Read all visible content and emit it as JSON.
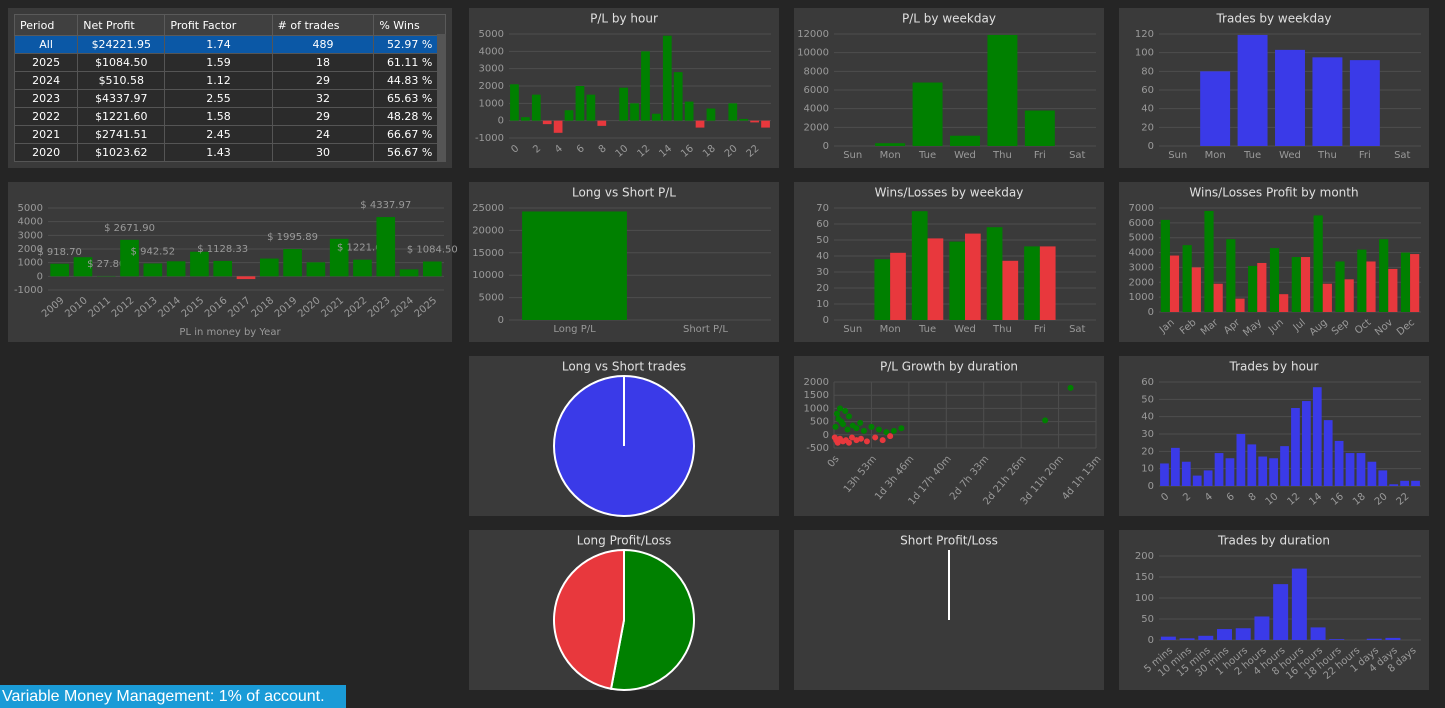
{
  "table": {
    "columns": [
      "Period",
      "Net Profit",
      "Profit Factor",
      "# of trades",
      "% Wins"
    ],
    "rows": [
      [
        "All",
        "$24221.95",
        "1.74",
        "489",
        "52.97 %"
      ],
      [
        "2025",
        "$1084.50",
        "1.59",
        "18",
        "61.11 %"
      ],
      [
        "2024",
        "$510.58",
        "1.12",
        "29",
        "44.83 %"
      ],
      [
        "2023",
        "$4337.97",
        "2.55",
        "32",
        "65.63 %"
      ],
      [
        "2022",
        "$1221.60",
        "1.58",
        "29",
        "48.28 %"
      ],
      [
        "2021",
        "$2741.51",
        "2.45",
        "24",
        "66.67 %"
      ],
      [
        "2020",
        "$1023.62",
        "1.43",
        "30",
        "56.67 %"
      ]
    ]
  },
  "footer": "Variable Money Management: 1% of account.",
  "chart_data": [
    {
      "type": "bar",
      "title": "P/L by hour",
      "categories": [
        "0",
        null,
        "2",
        null,
        "4",
        null,
        "6",
        null,
        "8",
        null,
        "10",
        null,
        "12",
        null,
        "14",
        null,
        "16",
        null,
        "18",
        null,
        "20",
        null,
        "22",
        null
      ],
      "values": [
        2100,
        200,
        1500,
        -200,
        -700,
        600,
        2000,
        1500,
        -300,
        0,
        1900,
        1000,
        4000,
        400,
        4900,
        2800,
        1100,
        -400,
        700,
        0,
        1000,
        100,
        -100,
        -400
      ],
      "color": "#008000",
      "negative_color": "#e8383d",
      "ylim": [
        -1000,
        5000
      ],
      "yticks": [
        -1000,
        0,
        1000,
        2000,
        3000,
        4000,
        5000
      ],
      "rotate_labels": true
    },
    {
      "type": "bar",
      "title": "P/L by weekday",
      "categories": [
        "Sun",
        "Mon",
        "Tue",
        "Wed",
        "Thu",
        "Fri",
        "Sat"
      ],
      "values": [
        0,
        300,
        6800,
        1100,
        11900,
        3800,
        0
      ],
      "color": "#008000",
      "ylim": [
        0,
        12000
      ],
      "yticks": [
        0,
        2000,
        4000,
        6000,
        8000,
        10000,
        12000
      ]
    },
    {
      "type": "bar",
      "title": "Trades by weekday",
      "categories": [
        "Sun",
        "Mon",
        "Tue",
        "Wed",
        "Thu",
        "Fri",
        "Sat"
      ],
      "values": [
        0,
        80,
        119,
        103,
        95,
        92,
        0
      ],
      "color": "#3a3ae8",
      "ylim": [
        0,
        120
      ],
      "yticks": [
        0,
        20,
        40,
        60,
        80,
        100,
        120
      ]
    },
    {
      "type": "bar",
      "x_label": "PL in money by Year",
      "categories": [
        "2009",
        "2010",
        "2011",
        "2012",
        "2013",
        "2014",
        "2015",
        "2016",
        "2017",
        "2018",
        "2019",
        "2020",
        "2021",
        "2022",
        "2023",
        "2024",
        "2025"
      ],
      "values": [
        918.7,
        1400,
        27.8,
        2671.9,
        942.52,
        1100,
        1800,
        1128.33,
        -200,
        1300,
        1995.89,
        1023.62,
        2741.51,
        1221.6,
        4337.97,
        510.58,
        1084.5
      ],
      "value_labels": [
        "$ 918.70",
        null,
        "$ 27.80",
        "$ 2671.90",
        "$ 942.52",
        null,
        null,
        "$ 1128.33",
        null,
        null,
        "$ 1995.89",
        null,
        null,
        "$ 1221.60",
        "$ 4337.97",
        null,
        "$ 1084.50"
      ],
      "color": "#008000",
      "negative_color": "#e8383d",
      "ylim": [
        -1000,
        5000
      ],
      "yticks": [
        -1000,
        0,
        1000,
        2000,
        3000,
        4000,
        5000
      ],
      "rotate_labels": true
    },
    {
      "type": "bar",
      "title": "Long vs Short P/L",
      "categories": [
        "Long P/L",
        "Short P/L"
      ],
      "values": [
        24221.95,
        0
      ],
      "color": "#008000",
      "ylim": [
        0,
        25000
      ],
      "yticks": [
        0,
        5000,
        10000,
        15000,
        20000,
        25000
      ]
    },
    {
      "type": "bar",
      "title": "Wins/Losses by weekday",
      "categories": [
        "Sun",
        "Mon",
        "Tue",
        "Wed",
        "Thu",
        "Fri",
        "Sat"
      ],
      "series": [
        {
          "color": "#008000",
          "values": [
            0,
            38,
            68,
            49,
            58,
            46,
            0
          ]
        },
        {
          "color": "#e8383d",
          "values": [
            0,
            42,
            51,
            54,
            37,
            46,
            0
          ]
        }
      ],
      "ylim": [
        0,
        70
      ],
      "yticks": [
        0,
        10,
        20,
        30,
        40,
        50,
        60,
        70
      ]
    },
    {
      "type": "bar",
      "title": "Wins/Losses Profit by month",
      "categories": [
        "Jan",
        "Feb",
        "Mar",
        "Apr",
        "May",
        "Jun",
        "Jul",
        "Aug",
        "Sep",
        "Oct",
        "Nov",
        "Dec"
      ],
      "series": [
        {
          "color": "#008000",
          "values": [
            6200,
            4500,
            6800,
            4900,
            3100,
            4300,
            3700,
            6500,
            3400,
            4200,
            4900,
            4000
          ]
        },
        {
          "color": "#e8383d",
          "values": [
            3800,
            3000,
            1900,
            900,
            3300,
            1200,
            3700,
            1900,
            2200,
            3400,
            2900,
            3900
          ]
        }
      ],
      "ylim": [
        0,
        7000
      ],
      "yticks": [
        0,
        1000,
        2000,
        3000,
        4000,
        5000,
        6000,
        7000
      ],
      "rotate_labels": true
    },
    {
      "type": "pie",
      "title": "Long vs Short trades",
      "values": [
        489,
        0
      ],
      "colors": [
        "#3a3ae8",
        "#e8383d"
      ]
    },
    {
      "type": "scatter",
      "title": "P/L Growth by duration",
      "series": [
        {
          "color": "#008000",
          "x": [
            2000,
            4000,
            6000,
            8000,
            10000,
            12000,
            15000,
            18000,
            20000,
            25000,
            30000,
            35000,
            40000,
            50000,
            60000,
            70000,
            80000,
            90000,
            282000,
            316000
          ],
          "values": [
            300,
            800,
            600,
            1000,
            500,
            400,
            900,
            200,
            700,
            350,
            250,
            450,
            150,
            300,
            200,
            100,
            150,
            250,
            545,
            1776
          ]
        },
        {
          "color": "#e8383d",
          "x": [
            1000,
            3000,
            5000,
            8000,
            12000,
            16000,
            20000,
            24000,
            30000,
            36000,
            44000,
            55000,
            65000,
            75000
          ],
          "values": [
            -100,
            -200,
            -300,
            -150,
            -250,
            -200,
            -300,
            -100,
            -200,
            -150,
            -250,
            -100,
            -200,
            -50
          ]
        }
      ],
      "xlim": [
        0,
        350000
      ],
      "xticks": [
        {
          "value": 0,
          "label": "0s"
        },
        {
          "value": 50000,
          "label": "13h 53m"
        },
        {
          "value": 100000,
          "label": "1d 3h 46m"
        },
        {
          "value": 150000,
          "label": "1d 17h 40m"
        },
        {
          "value": 200000,
          "label": "2d 7h 33m"
        },
        {
          "value": 250000,
          "label": "2d 21h 26m"
        },
        {
          "value": 300000,
          "label": "3d 11h 20m"
        },
        {
          "value": 350000,
          "label": "4d 1h 13m"
        }
      ],
      "ylim": [
        -500,
        2000
      ],
      "yticks": [
        -500,
        0,
        500,
        1000,
        1500,
        2000
      ]
    },
    {
      "type": "bar",
      "title": "Trades by hour",
      "categories": [
        "0",
        null,
        "2",
        null,
        "4",
        null,
        "6",
        null,
        "8",
        null,
        "10",
        null,
        "12",
        null,
        "14",
        null,
        "16",
        null,
        "18",
        null,
        "20",
        null,
        "22",
        null
      ],
      "values": [
        13,
        22,
        14,
        6,
        9,
        19,
        16,
        30,
        24,
        17,
        16,
        23,
        45,
        49,
        57,
        38,
        26,
        19,
        19,
        14,
        9,
        1,
        3,
        3
      ],
      "color": "#3a3ae8",
      "ylim": [
        0,
        60
      ],
      "yticks": [
        0,
        10,
        20,
        30,
        40,
        50,
        60
      ],
      "rotate_labels": true
    },
    {
      "type": "pie",
      "title": "Long Profit/Loss",
      "values": [
        259,
        230
      ],
      "colors": [
        "#008000",
        "#e8383d"
      ]
    },
    {
      "type": "pie",
      "title": "Short Profit/Loss",
      "values": [
        0,
        0
      ],
      "colors": [
        "#008000",
        "#e8383d"
      ]
    },
    {
      "type": "bar",
      "title": "Trades by duration",
      "categories": [
        "5 mins",
        "10 mins",
        "15 mins",
        "30 mins",
        "1 hours",
        "2 hours",
        "4 hours",
        "8 hours",
        "16 hours",
        "18 hours",
        "22 hours",
        "1 days",
        "4 days",
        "8 days"
      ],
      "values": [
        8,
        4,
        10,
        26,
        28,
        56,
        133,
        170,
        30,
        2,
        0,
        3,
        5,
        0
      ],
      "color": "#3a3ae8",
      "ylim": [
        0,
        200
      ],
      "yticks": [
        0,
        50,
        100,
        150,
        200
      ],
      "rotate_labels": true
    }
  ]
}
